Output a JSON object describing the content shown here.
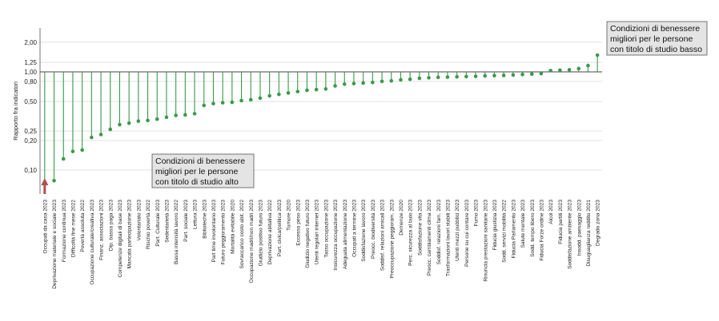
{
  "chart_data": {
    "type": "lollipop",
    "scale": "log",
    "ylabel": "Rapporto fra indicatori",
    "yticks": [
      0.1,
      0.2,
      0.25,
      0.5,
      0.8,
      1.0,
      1.25,
      2.0
    ],
    "ytick_labels": [
      "0,10",
      "0,20",
      "0,25",
      "0,50",
      "0,80",
      "1,00",
      "1,25",
      "2,00"
    ],
    "ylim": [
      0.057,
      2.8
    ],
    "reference_line": 1.0,
    "grid": true,
    "colors": {
      "stem": "#3a9a4a",
      "dot": "#3a9a4a",
      "arrow": "#b05050",
      "annotation_bg": "#e4e4e4"
    },
    "categories": [
      "Occupati da casa 2023",
      "Deprivazione materiale e sociale 2023",
      "Formazione continua 2023",
      "Difficoltà fine mese 2022",
      "Povertà assoluta 2022",
      "Occupazione culturale/creativa 2023",
      "Finanz. associazioni 2023",
      "Dip. bassa paga 2023",
      "Competenze digitali di base 2023",
      "Mancata partecipazione 2023",
      "Volontariato 2023",
      "Rischio povertà 2022",
      "Part. Culturale 2023",
      "Sedentarietà 2023",
      "Bassa intensità lavoro 2022",
      "Part. sociale 2023",
      "Lettura 2023",
      "Biblioteche 2023",
      "Part time involontario 2023",
      "Futuro peggioramento 2023",
      "Mortalità evitabile 2020",
      "Sovraccarico costo abit. 2022",
      "Occupazione madri/non madri 2023",
      "Giudizio positivo futuro 2023",
      "Deprivazione abitativa 2022",
      "Part. civica/politica 2023",
      "Tumore 2020",
      "Eccesso peso 2023",
      "Giudizio negativo futuro 2023",
      "Utenti regolari internet 2023",
      "Tasso occupazione 2023",
      "Insicurezza occupazione 2023",
      "Adeguata alimentazione 2023",
      "Occupati a termine 2023",
      "Soddisfazione lavoro 2023",
      "Preocc. biodiversità 2023",
      "Soddisf. relazioni amicali 2023",
      "Preoccupazione peggioram. 2023",
      "Demenze 2020",
      "Perc. sicurezza al buio 2023",
      "Soddisfazione vita 2023",
      "Preocc. cambiamenti clima 2023",
      "Soddisf. relazioni fam. 2023",
      "Trasformazioni lavori stabili 2023",
      "Utenti mezzi pubblici 2023",
      "Persone su cui contare 2023",
      "Fumo 2023",
      "Rinuncia prestazioni sanitarie 2023",
      "Fiducia giustizia 2023",
      "Sodd. servizi mobilità 2022",
      "Fiducia Parlamento 2023",
      "Salute mentale 2023",
      "Sodd. tempo libero 2023",
      "Fiducia Forze ordine 2023",
      "Alcol 2023",
      "Fiducia partiti 2023",
      "Soddisfazione ambiente 2023",
      "Insodd. paesaggio 2023",
      "Disuguaglianza reddito 2021",
      "Degrado zona 2023"
    ],
    "values": [
      0.075,
      0.078,
      0.13,
      0.155,
      0.16,
      0.215,
      0.23,
      0.26,
      0.29,
      0.3,
      0.315,
      0.32,
      0.33,
      0.345,
      0.36,
      0.365,
      0.375,
      0.455,
      0.475,
      0.485,
      0.49,
      0.51,
      0.52,
      0.54,
      0.57,
      0.59,
      0.61,
      0.63,
      0.65,
      0.66,
      0.67,
      0.72,
      0.75,
      0.76,
      0.77,
      0.78,
      0.8,
      0.81,
      0.83,
      0.84,
      0.86,
      0.87,
      0.88,
      0.885,
      0.89,
      0.895,
      0.9,
      0.91,
      0.915,
      0.92,
      0.93,
      0.94,
      0.95,
      0.96,
      1.03,
      1.04,
      1.05,
      1.08,
      1.16,
      1.48
    ]
  },
  "annotations": {
    "high_education": [
      "Condizioni  di  benessere",
      "migliori  per  le  persone",
      "con titolo di studio alto"
    ],
    "low_education": [
      "Condizioni  di  benessere",
      "migliori  per  le  persone",
      "con titolo di studio basso"
    ]
  }
}
